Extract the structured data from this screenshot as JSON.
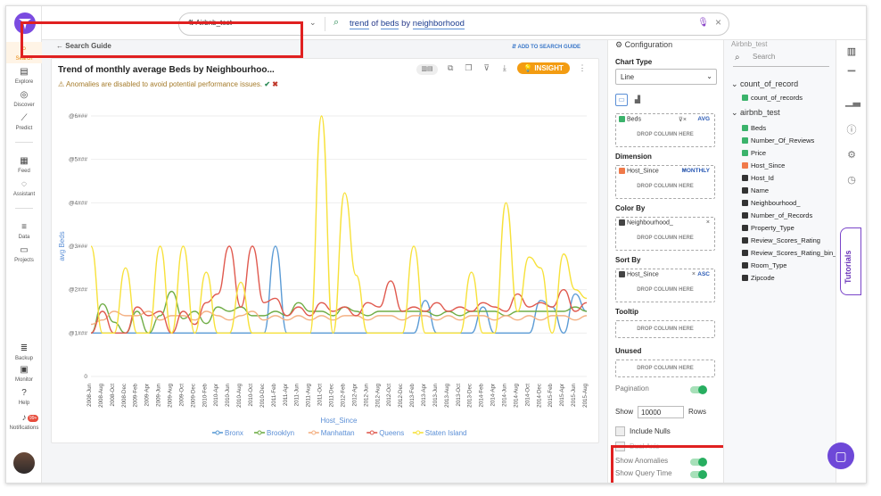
{
  "rail": {
    "items": [
      {
        "label": "Search",
        "icon": "search-icon"
      },
      {
        "label": "Explore",
        "icon": "explore-icon"
      },
      {
        "label": "Discover",
        "icon": "discover-icon"
      },
      {
        "label": "Predict",
        "icon": "predict-icon"
      },
      {
        "label": "Feed",
        "icon": "feed-icon"
      },
      {
        "label": "Assistant",
        "icon": "assistant-icon"
      },
      {
        "label": "Data",
        "icon": "database-icon"
      },
      {
        "label": "Projects",
        "icon": "folder-icon"
      },
      {
        "label": "Backup",
        "icon": "backup-icon"
      },
      {
        "label": "Monitor",
        "icon": "monitor-icon"
      },
      {
        "label": "Help",
        "icon": "help-icon"
      },
      {
        "label": "Notifications",
        "icon": "bell-icon"
      }
    ],
    "notif_badge": "99+"
  },
  "topbar": {
    "datasource": "Airbnb_test",
    "query_tokens": [
      {
        "text": "trend",
        "token": true
      },
      {
        "text": " of ",
        "token": false
      },
      {
        "text": "beds",
        "token": true
      },
      {
        "text": " by ",
        "token": false
      },
      {
        "text": "neighborhood",
        "token": true
      }
    ]
  },
  "main": {
    "guide_label": "Search Guide",
    "add_guide_label": "ADD TO SEARCH GUIDE",
    "insight_label": "INSIGHT",
    "chart_title": "Trend of monthly average Beds by Neighbourhoo...",
    "anomaly_msg": "Anomalies are disabled to avoid potential performance issues."
  },
  "config": {
    "title": "Configuration",
    "chart_type_h": "Chart Type",
    "chart_type_value": "Line",
    "measure_chip": "Beds",
    "measure_agg": "AVG",
    "dimension_h": "Dimension",
    "dimension_chip": "Host_Since",
    "dimension_agg": "MONTHLY",
    "color_h": "Color By",
    "color_chip": "Neighbourhood_",
    "sort_h": "Sort By",
    "sort_chip": "Host_Since",
    "sort_agg": "ASC",
    "tooltip_h": "Tooltip",
    "unused_h": "Unused",
    "drop_label": "DROP COLUMN HERE",
    "pagination_label": "Pagination",
    "show_label": "Show",
    "show_value": "10000",
    "rows_label": "Rows",
    "include_nulls": "Include Nulls",
    "dual_axis": "Dual Axis",
    "show_anomalies": "Show Anomalies",
    "show_query_time": "Show Query Time"
  },
  "datapanel": {
    "search_placeholder": "Search",
    "top_truncated": "Airbnb_test",
    "group1": "count_of_record",
    "group1_fields": [
      {
        "name": "count_of_records",
        "type": "num"
      }
    ],
    "group2": "airbnb_test",
    "fields": [
      {
        "name": "Beds",
        "type": "num"
      },
      {
        "name": "Number_Of_Reviews",
        "type": "num"
      },
      {
        "name": "Price",
        "type": "num"
      },
      {
        "name": "Host_Since",
        "type": "date"
      },
      {
        "name": "Host_Id",
        "type": "str"
      },
      {
        "name": "Name",
        "type": "str"
      },
      {
        "name": "Neighbourhood_",
        "type": "str"
      },
      {
        "name": "Number_of_Records",
        "type": "str"
      },
      {
        "name": "Property_Type",
        "type": "str"
      },
      {
        "name": "Review_Scores_Rating",
        "type": "str"
      },
      {
        "name": "Review_Scores_Rating_bin_",
        "type": "str"
      },
      {
        "name": "Room_Type",
        "type": "str"
      },
      {
        "name": "Zipcode",
        "type": "str"
      }
    ]
  },
  "right_rail": {
    "tutorials_label": "Tutorials"
  },
  "chart_data": {
    "type": "line",
    "ylabel": "avg Beds",
    "xlabel": "Host_Since",
    "y_tick_labels": [
      "0",
      "@1###",
      "@2###",
      "@3###",
      "@4###",
      "@5###",
      "@6###"
    ],
    "ylim": [
      0,
      6
    ],
    "x_tick_labels": [
      "2008-Jun",
      "2008-Aug",
      "2008-Oct",
      "2008-Dec",
      "2009-Feb",
      "2009-Apr",
      "2009-Jun",
      "2009-Aug",
      "2009-Oct",
      "2009-Dec",
      "2010-Feb",
      "2010-Apr",
      "2010-Jun",
      "2010-Aug",
      "2010-Oct",
      "2010-Dec",
      "2011-Feb",
      "2011-Apr",
      "2011-Jun",
      "2011-Aug",
      "2011-Oct",
      "2011-Dec",
      "2012-Feb",
      "2012-Apr",
      "2012-Jun",
      "2012-Aug",
      "2012-Oct",
      "2012-Dec",
      "2013-Feb",
      "2013-Apr",
      "2013-Jun",
      "2013-Aug",
      "2013-Oct",
      "2013-Dec",
      "2014-Feb",
      "2014-Apr",
      "2014-Jun",
      "2014-Aug",
      "2014-Oct",
      "2014-Dec",
      "2015-Feb",
      "2015-Apr",
      "2015-Jun",
      "2015-Aug"
    ],
    "legend_position": "bottom",
    "series": [
      {
        "name": "Bronx",
        "color": "#5b9bd5",
        "values": [
          1,
          1,
          1,
          1,
          1,
          1,
          1,
          1,
          1,
          1,
          1,
          1,
          1,
          1,
          1,
          1,
          3,
          1,
          1,
          1,
          1,
          1,
          1,
          1,
          1,
          1,
          1,
          1,
          1,
          1.75,
          1,
          1,
          1,
          1,
          1.6,
          1,
          1,
          1,
          1,
          1.75,
          1.6,
          1,
          1.9,
          1.5
        ]
      },
      {
        "name": "Brooklyn",
        "color": "#70ad47",
        "values": [
          1,
          1.67,
          1.25,
          1,
          1.5,
          1,
          1.4,
          1.96,
          1.33,
          1.5,
          1.22,
          1.6,
          1.5,
          1.6,
          1.4,
          1.4,
          1.5,
          1.4,
          1.7,
          1.5,
          1.5,
          1.4,
          1.6,
          1.5,
          1.4,
          1.5,
          1.5,
          1.5,
          1.5,
          1.5,
          1.4,
          1.5,
          1.4,
          1.5,
          1.5,
          1.5,
          1.4,
          1.5,
          1.5,
          1.5,
          1.5,
          1.5,
          1.6,
          1.5
        ]
      },
      {
        "name": "Manhattan",
        "color": "#f4b183",
        "values": [
          1.2,
          1.3,
          1.5,
          1.4,
          1.4,
          1.5,
          1.3,
          1.4,
          1.4,
          1.3,
          1.5,
          1.4,
          1.3,
          1.4,
          1.5,
          1.3,
          1.4,
          1.3,
          1.4,
          1.3,
          1.4,
          1.3,
          1.4,
          1.4,
          1.3,
          1.4,
          1.4,
          1.3,
          1.4,
          1.4,
          1.3,
          1.4,
          1.3,
          1.4,
          1.4,
          1.3,
          1.4,
          1.3,
          1.4,
          1.3,
          1.4,
          1.4,
          1.3,
          1.4
        ]
      },
      {
        "name": "Queens",
        "color": "#e05a4f",
        "values": [
          1,
          1.5,
          1,
          1,
          1.6,
          1.4,
          1.5,
          1,
          1.5,
          1.2,
          1.7,
          1.9,
          3,
          1.6,
          3,
          1.7,
          1.8,
          1.4,
          1.6,
          1.4,
          1.7,
          1.5,
          1.6,
          1.4,
          1.7,
          1.6,
          2.2,
          1.5,
          1.6,
          1.5,
          1.7,
          1.5,
          1.6,
          1.5,
          1.7,
          1.6,
          1.5,
          1.9,
          1.6,
          1.7,
          1.6,
          2,
          1.5,
          1.7
        ]
      },
      {
        "name": "Staten Island",
        "color": "#f7e13a",
        "values": [
          3,
          1,
          1,
          2.5,
          1,
          1,
          3,
          1,
          3,
          1,
          2.4,
          1,
          1,
          2.17,
          1,
          1,
          1,
          1,
          1,
          1,
          6,
          1,
          4.23,
          2.33,
          1,
          1,
          1,
          1,
          3,
          1,
          1,
          1,
          1,
          2.4,
          1,
          1,
          4,
          1.5,
          2.75,
          2.5,
          1,
          2.82,
          2,
          1.8
        ]
      }
    ]
  }
}
